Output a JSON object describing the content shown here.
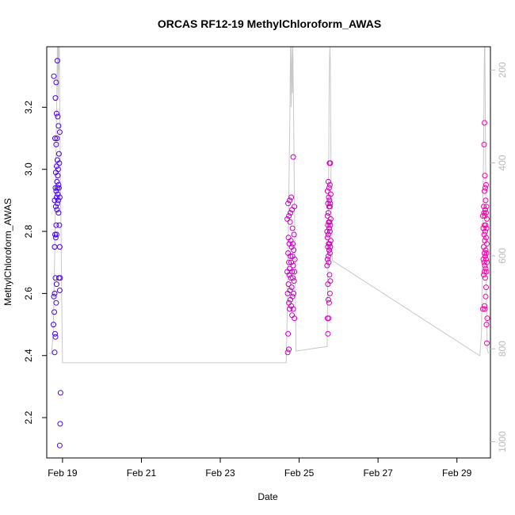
{
  "chart_data": {
    "type": "scatter",
    "title": "ORCAS RF12-19 MethylChloroform_AWAS",
    "xlabel": "Date",
    "ylabel": "MethylChloroform_AWAS",
    "y_right_label": "",
    "xlim": [
      18.6,
      29.85
    ],
    "ylim": [
      2.07,
      3.395
    ],
    "y_right_lim": [
      1035,
      150
    ],
    "x_ticks": [
      {
        "value": 19,
        "label": "Feb 19"
      },
      {
        "value": 21,
        "label": "Feb 21"
      },
      {
        "value": 23,
        "label": "Feb 23"
      },
      {
        "value": 25,
        "label": "Feb 25"
      },
      {
        "value": 27,
        "label": "Feb 27"
      },
      {
        "value": 29,
        "label": "Feb 29"
      }
    ],
    "y_ticks": [
      2.2,
      2.4,
      2.6,
      2.8,
      3.0,
      3.2
    ],
    "y_tick_labels": [
      "2.2",
      "2.4",
      "2.6",
      "2.8",
      "3.0",
      "3.2"
    ],
    "y_right_ticks": [
      200,
      400,
      600,
      800,
      1000
    ],
    "y_right_tick_labels": [
      "200",
      "400",
      "600",
      "800",
      "1000"
    ],
    "colors": {
      "start": "#3300ff",
      "end": "#ff00aa",
      "pressure_line": "#c8c8c8"
    },
    "series": [
      {
        "values": [
          [
            18.78,
            3.3
          ],
          [
            18.84,
            3.28
          ],
          [
            18.87,
            3.35
          ],
          [
            18.82,
            3.23
          ],
          [
            18.85,
            3.18
          ],
          [
            18.88,
            3.17
          ],
          [
            18.9,
            3.14
          ],
          [
            18.93,
            3.12
          ],
          [
            18.81,
            3.1
          ],
          [
            18.86,
            3.1
          ],
          [
            18.84,
            3.08
          ],
          [
            18.91,
            3.05
          ],
          [
            18.87,
            3.03
          ],
          [
            18.92,
            3.02
          ],
          [
            18.85,
            3.01
          ],
          [
            18.89,
            3.0
          ],
          [
            18.83,
            2.99
          ],
          [
            18.88,
            2.98
          ],
          [
            18.86,
            2.96
          ],
          [
            18.9,
            2.95
          ],
          [
            18.82,
            2.94
          ],
          [
            18.87,
            2.94
          ],
          [
            18.91,
            2.94
          ],
          [
            18.84,
            2.93
          ],
          [
            18.88,
            2.92
          ],
          [
            18.85,
            2.91
          ],
          [
            18.93,
            2.91
          ],
          [
            18.8,
            2.9
          ],
          [
            18.89,
            2.9
          ],
          [
            18.87,
            2.89
          ],
          [
            18.83,
            2.88
          ],
          [
            18.86,
            2.87
          ],
          [
            18.9,
            2.86
          ],
          [
            18.84,
            2.82
          ],
          [
            18.92,
            2.82
          ],
          [
            18.81,
            2.79
          ],
          [
            18.85,
            2.79
          ],
          [
            18.83,
            2.78
          ],
          [
            18.8,
            2.75
          ],
          [
            18.93,
            2.75
          ],
          [
            18.91,
            2.65
          ],
          [
            18.94,
            2.65
          ],
          [
            18.82,
            2.65
          ],
          [
            18.85,
            2.63
          ],
          [
            18.93,
            2.61
          ],
          [
            18.8,
            2.6
          ],
          [
            18.78,
            2.59
          ],
          [
            18.84,
            2.57
          ],
          [
            18.79,
            2.54
          ],
          [
            18.77,
            2.5
          ],
          [
            18.81,
            2.47
          ],
          [
            18.82,
            2.46
          ],
          [
            18.8,
            2.41
          ],
          [
            18.95,
            2.28
          ],
          [
            18.94,
            2.18
          ],
          [
            18.93,
            2.11
          ]
        ]
      },
      {
        "values": [
          [
            24.72,
            2.89
          ],
          [
            24.76,
            2.9
          ],
          [
            24.8,
            2.91
          ],
          [
            24.85,
            3.04
          ],
          [
            24.74,
            2.85
          ],
          [
            24.78,
            2.86
          ],
          [
            24.82,
            2.87
          ],
          [
            24.88,
            2.88
          ],
          [
            24.7,
            2.84
          ],
          [
            24.77,
            2.83
          ],
          [
            24.83,
            2.81
          ],
          [
            24.87,
            2.79
          ],
          [
            24.73,
            2.78
          ],
          [
            24.79,
            2.77
          ],
          [
            24.84,
            2.76
          ],
          [
            24.75,
            2.76
          ],
          [
            24.81,
            2.75
          ],
          [
            24.86,
            2.74
          ],
          [
            24.72,
            2.73
          ],
          [
            24.78,
            2.72
          ],
          [
            24.83,
            2.72
          ],
          [
            24.89,
            2.71
          ],
          [
            24.74,
            2.7
          ],
          [
            24.8,
            2.7
          ],
          [
            24.85,
            2.69
          ],
          [
            24.76,
            2.68
          ],
          [
            24.82,
            2.67
          ],
          [
            24.7,
            2.67
          ],
          [
            24.88,
            2.67
          ],
          [
            24.75,
            2.66
          ],
          [
            24.79,
            2.65
          ],
          [
            24.84,
            2.65
          ],
          [
            24.87,
            2.64
          ],
          [
            24.73,
            2.63
          ],
          [
            24.81,
            2.62
          ],
          [
            24.77,
            2.61
          ],
          [
            24.86,
            2.6
          ],
          [
            24.71,
            2.6
          ],
          [
            24.83,
            2.59
          ],
          [
            24.78,
            2.58
          ],
          [
            24.74,
            2.57
          ],
          [
            24.8,
            2.56
          ],
          [
            24.85,
            2.55
          ],
          [
            24.76,
            2.55
          ],
          [
            24.82,
            2.53
          ],
          [
            24.88,
            2.52
          ],
          [
            24.72,
            2.47
          ],
          [
            24.74,
            2.42
          ],
          [
            24.71,
            2.41
          ],
          [
            25.77,
            3.02
          ],
          [
            25.79,
            3.02
          ],
          [
            25.74,
            2.96
          ],
          [
            25.78,
            2.95
          ],
          [
            25.76,
            2.94
          ],
          [
            25.72,
            2.93
          ],
          [
            25.8,
            2.92
          ],
          [
            25.75,
            2.91
          ],
          [
            25.77,
            2.9
          ],
          [
            25.73,
            2.89
          ],
          [
            25.79,
            2.89
          ],
          [
            25.76,
            2.88
          ],
          [
            25.78,
            2.88
          ],
          [
            25.74,
            2.86
          ],
          [
            25.72,
            2.85
          ],
          [
            25.8,
            2.84
          ],
          [
            25.75,
            2.83
          ],
          [
            25.77,
            2.83
          ],
          [
            25.73,
            2.82
          ],
          [
            25.79,
            2.82
          ],
          [
            25.76,
            2.81
          ],
          [
            25.71,
            2.8
          ],
          [
            25.78,
            2.8
          ],
          [
            25.74,
            2.79
          ],
          [
            25.72,
            2.78
          ],
          [
            25.8,
            2.77
          ],
          [
            25.75,
            2.76
          ],
          [
            25.77,
            2.76
          ],
          [
            25.73,
            2.75
          ],
          [
            25.79,
            2.75
          ],
          [
            25.76,
            2.74
          ],
          [
            25.78,
            2.73
          ],
          [
            25.74,
            2.72
          ],
          [
            25.72,
            2.71
          ],
          [
            25.75,
            2.7
          ],
          [
            25.71,
            2.69
          ],
          [
            25.77,
            2.66
          ],
          [
            25.79,
            2.64
          ],
          [
            25.73,
            2.63
          ],
          [
            25.78,
            2.6
          ],
          [
            25.74,
            2.58
          ],
          [
            25.76,
            2.57
          ],
          [
            25.72,
            2.52
          ],
          [
            25.75,
            2.52
          ],
          [
            25.73,
            2.47
          ],
          [
            29.7,
            3.15
          ],
          [
            29.69,
            3.08
          ],
          [
            29.71,
            2.98
          ],
          [
            29.74,
            2.95
          ],
          [
            29.72,
            2.94
          ],
          [
            29.7,
            2.93
          ],
          [
            29.73,
            2.9
          ],
          [
            29.68,
            2.88
          ],
          [
            29.75,
            2.88
          ],
          [
            29.72,
            2.87
          ],
          [
            29.69,
            2.86
          ],
          [
            29.74,
            2.86
          ],
          [
            29.71,
            2.85
          ],
          [
            29.66,
            2.85
          ],
          [
            29.76,
            2.84
          ],
          [
            29.7,
            2.82
          ],
          [
            29.73,
            2.82
          ],
          [
            29.67,
            2.81
          ],
          [
            29.75,
            2.81
          ],
          [
            29.72,
            2.8
          ],
          [
            29.69,
            2.79
          ],
          [
            29.74,
            2.78
          ],
          [
            29.71,
            2.77
          ],
          [
            29.76,
            2.76
          ],
          [
            29.68,
            2.75
          ],
          [
            29.73,
            2.74
          ],
          [
            29.7,
            2.73
          ],
          [
            29.75,
            2.73
          ],
          [
            29.72,
            2.72
          ],
          [
            29.67,
            2.71
          ],
          [
            29.74,
            2.71
          ],
          [
            29.69,
            2.7
          ],
          [
            29.76,
            2.7
          ],
          [
            29.71,
            2.69
          ],
          [
            29.73,
            2.68
          ],
          [
            29.7,
            2.67
          ],
          [
            29.75,
            2.67
          ],
          [
            29.68,
            2.66
          ],
          [
            29.72,
            2.65
          ],
          [
            29.74,
            2.62
          ],
          [
            29.73,
            2.59
          ],
          [
            29.7,
            2.56
          ],
          [
            29.66,
            2.55
          ],
          [
            29.71,
            2.55
          ],
          [
            29.77,
            2.52
          ],
          [
            29.75,
            2.5
          ],
          [
            29.76,
            2.44
          ]
        ]
      }
    ],
    "pressure_line": [
      [
        18.65,
        810
      ],
      [
        18.72,
        810
      ],
      [
        18.76,
        770
      ],
      [
        18.78,
        700
      ],
      [
        18.8,
        600
      ],
      [
        18.82,
        480
      ],
      [
        18.84,
        350
      ],
      [
        18.86,
        230
      ],
      [
        18.87,
        150
      ],
      [
        18.88,
        150
      ],
      [
        18.89,
        260
      ],
      [
        18.9,
        150
      ],
      [
        18.91,
        200
      ],
      [
        18.92,
        150
      ],
      [
        18.93,
        260
      ],
      [
        18.94,
        380
      ],
      [
        18.96,
        520
      ],
      [
        18.98,
        700
      ],
      [
        19.0,
        830
      ],
      [
        24.67,
        830
      ],
      [
        24.69,
        760
      ],
      [
        24.71,
        650
      ],
      [
        24.73,
        520
      ],
      [
        24.75,
        400
      ],
      [
        24.77,
        260
      ],
      [
        24.78,
        150
      ],
      [
        24.8,
        280
      ],
      [
        24.81,
        150
      ],
      [
        24.83,
        250
      ],
      [
        24.84,
        150
      ],
      [
        24.86,
        300
      ],
      [
        24.88,
        480
      ],
      [
        24.9,
        650
      ],
      [
        24.92,
        805
      ],
      [
        25.71,
        795
      ],
      [
        25.73,
        620
      ],
      [
        25.75,
        400
      ],
      [
        25.76,
        250
      ],
      [
        25.77,
        180
      ],
      [
        25.78,
        150
      ],
      [
        25.79,
        180
      ],
      [
        25.8,
        300
      ],
      [
        25.81,
        480
      ],
      [
        25.84,
        610
      ],
      [
        29.58,
        815
      ],
      [
        29.62,
        770
      ],
      [
        29.64,
        650
      ],
      [
        29.66,
        500
      ],
      [
        29.68,
        350
      ],
      [
        29.69,
        220
      ],
      [
        29.7,
        150
      ],
      [
        29.71,
        150
      ],
      [
        29.72,
        280
      ],
      [
        29.73,
        420
      ],
      [
        29.74,
        560
      ],
      [
        29.75,
        700
      ],
      [
        29.77,
        800
      ],
      [
        29.8,
        810
      ]
    ]
  }
}
